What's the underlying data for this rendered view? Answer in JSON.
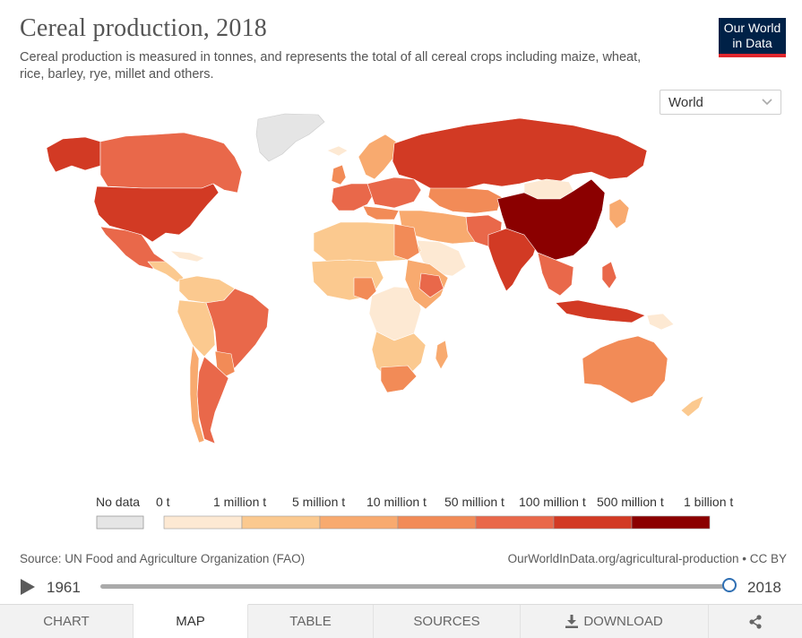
{
  "header": {
    "title": "Cereal production, 2018",
    "subtitle": "Cereal production is measured in tonnes, and represents the total of all cereal crops including maize, wheat, rice, barley, rye, millet and others.",
    "logo_line1": "Our World",
    "logo_line2": "in Data"
  },
  "region_selector": {
    "value": "World"
  },
  "legend": {
    "no_data_label": "No data",
    "bin_labels": [
      "0 t",
      "1 million t",
      "5 million t",
      "10 million t",
      "50 million t",
      "100 million t",
      "500 million t",
      "1 billion t"
    ],
    "bin_colors": [
      "#fde9d3",
      "#fbc98f",
      "#f8aa6f",
      "#f28b57",
      "#e9684a",
      "#d23a24",
      "#8b0000"
    ],
    "no_data_color": "#e5e5e5"
  },
  "footer": {
    "source": "Source: UN Food and Agriculture Organization (FAO)",
    "url": "OurWorldInData.org/agricultural-production • CC BY"
  },
  "timeline": {
    "start_year": "1961",
    "end_year": "2018",
    "position": 1.0
  },
  "tabs": [
    {
      "label": "Chart",
      "active": false
    },
    {
      "label": "Map",
      "active": true
    },
    {
      "label": "Table",
      "active": false
    },
    {
      "label": "Sources",
      "active": false
    },
    {
      "label": "Download",
      "active": false
    }
  ],
  "icons": {
    "play": "play-icon",
    "download": "download-icon",
    "share": "share-icon",
    "chevron": "chevron-down-icon"
  }
}
